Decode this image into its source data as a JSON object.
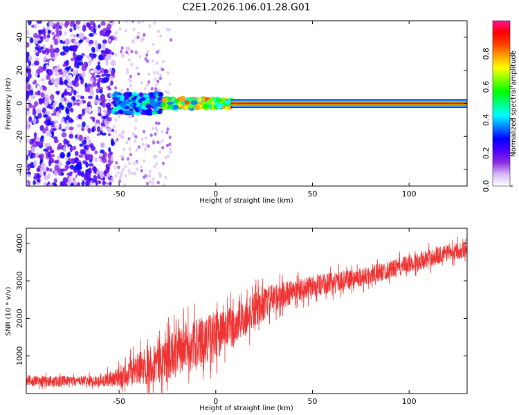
{
  "title": "C2E1.2026.106.01.28.G01",
  "chart_data": [
    {
      "type": "heatmap",
      "xlabel": "Height of straight line (km)",
      "ylabel": "Frequency (Hz)",
      "xlim": [
        -98,
        130
      ],
      "ylim": [
        -50,
        50
      ],
      "xticks": [
        -50,
        0,
        50,
        100
      ],
      "yticks": [
        -40,
        -20,
        0,
        20,
        40
      ],
      "grid": false,
      "colorbar": {
        "label": "Normalized spectral amplitude",
        "ticks": [
          0.0,
          0.2,
          0.4,
          0.6,
          0.8
        ],
        "range": [
          0,
          1
        ],
        "colors": [
          "#ffffff",
          "#d8b8f8",
          "#8a2be2",
          "#4b00ff",
          "#0000ff",
          "#0080ff",
          "#00ffff",
          "#00ff80",
          "#00ff00",
          "#80ff00",
          "#ffff00",
          "#ffa500",
          "#ff4000",
          "#ff0000",
          "#ff1493"
        ]
      },
      "regions": [
        {
          "x_range": [
            -98,
            -53
          ],
          "description_level": "scattered noise",
          "amplitude": 0.15
        },
        {
          "x_range": [
            -53,
            -28
          ],
          "freq_spread_hz": 6,
          "amplitude": 0.35
        },
        {
          "x_range": [
            -28,
            8
          ],
          "freq_spread_hz": 3,
          "amplitude": 0.6
        },
        {
          "x_range": [
            8,
            130
          ],
          "freq_center_hz": 0,
          "amplitude": 0.95
        }
      ]
    },
    {
      "type": "line",
      "xlabel": "Height of straight line (km)",
      "ylabel": "SNR (10 * v/v)",
      "xlim": [
        -98,
        130
      ],
      "ylim": [
        0,
        4400
      ],
      "xticks": [
        -50,
        0,
        50,
        100
      ],
      "yticks": [
        1000,
        2000,
        3000,
        4000
      ],
      "grid": false,
      "series_color": "#ee3333",
      "envelope": {
        "x": [
          -98,
          -70,
          -60,
          -50,
          -40,
          -30,
          -20,
          -10,
          0,
          10,
          20,
          30,
          40,
          50,
          60,
          70,
          80,
          90,
          100,
          110,
          120,
          130
        ],
        "mean": [
          330,
          330,
          340,
          420,
          650,
          850,
          1100,
          1350,
          1550,
          1800,
          2200,
          2550,
          2700,
          2850,
          2950,
          3050,
          3150,
          3300,
          3450,
          3600,
          3750,
          3850
        ],
        "spread": [
          180,
          170,
          180,
          330,
          550,
          700,
          800,
          800,
          800,
          700,
          600,
          480,
          400,
          360,
          340,
          320,
          320,
          300,
          300,
          300,
          280,
          280
        ]
      }
    }
  ]
}
